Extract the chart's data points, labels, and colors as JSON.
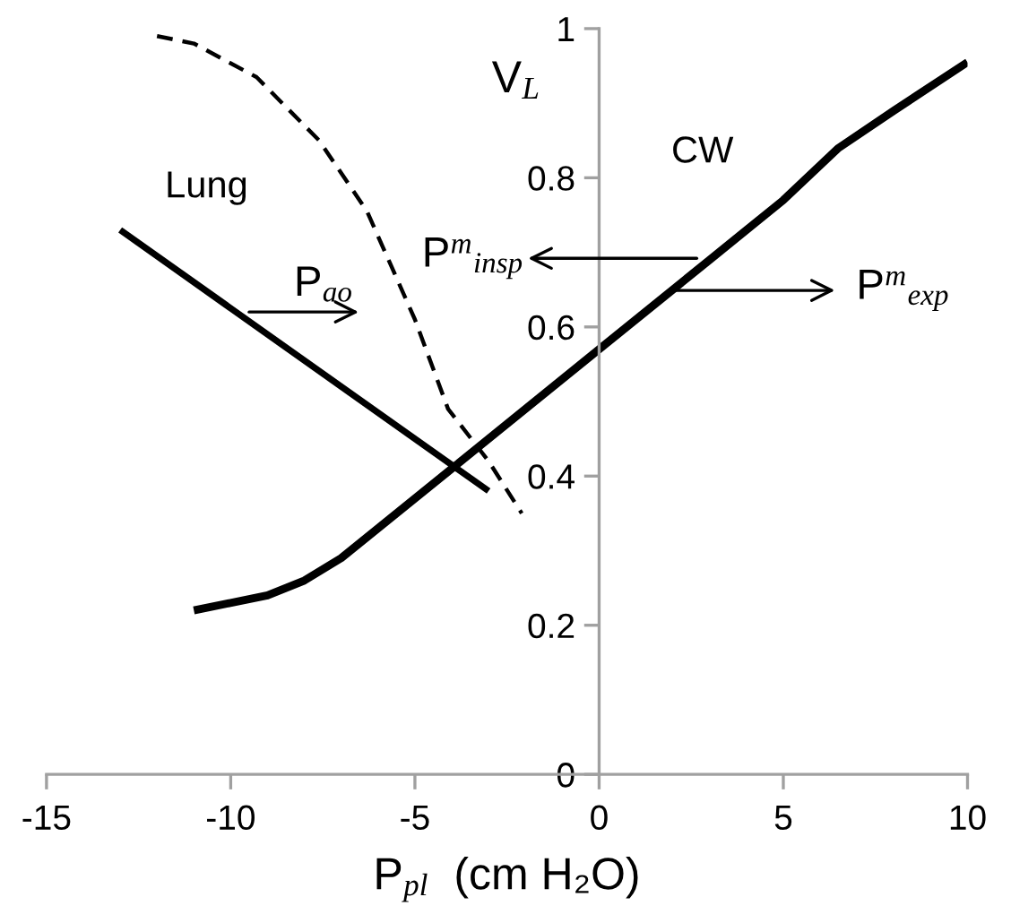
{
  "chart_data": {
    "type": "line",
    "xlabel": "P$_{pl}$  (cm H₂O)",
    "ylabel": "V$_{L}$",
    "xlim": [
      -15,
      10
    ],
    "xticks": [
      -15,
      -10,
      -5,
      0,
      5,
      10
    ],
    "ylim": [
      0,
      1
    ],
    "yticks": [
      0,
      0.2,
      0.4,
      0.6,
      0.8,
      1
    ],
    "grid": false,
    "marker": "none",
    "series": [
      {
        "name": "Lung",
        "color": "#000000",
        "line_style": "solid",
        "x": [
          -13,
          -3
        ],
        "values": [
          0.73,
          0.38
        ]
      },
      {
        "color": "#000000",
        "line_style": "dashed",
        "x": [
          -12,
          -11,
          -9.3,
          -7.6,
          -6.3,
          -5,
          -4.1,
          -3,
          -2.1
        ],
        "values": [
          0.99,
          0.98,
          0.935,
          0.85,
          0.755,
          0.61,
          0.49,
          0.42,
          0.35
        ]
      },
      {
        "name": "CW",
        "color": "#000000",
        "line_style": "solid",
        "x": [
          -11,
          -9,
          -8,
          -7,
          -6,
          -4,
          0,
          3,
          5,
          6.5,
          8,
          10
        ],
        "values": [
          0.22,
          0.24,
          0.26,
          0.29,
          0.33,
          0.41,
          0.57,
          0.69,
          0.77,
          0.84,
          0.89,
          0.955
        ]
      }
    ],
    "annotations": [
      {
        "text": "P$_{ao}$",
        "x": -9.5,
        "y": 0.62
      },
      "P$^{m}$$_{insp}$",
      "P$^{m}$$_{exp}$"
    ]
  }
}
